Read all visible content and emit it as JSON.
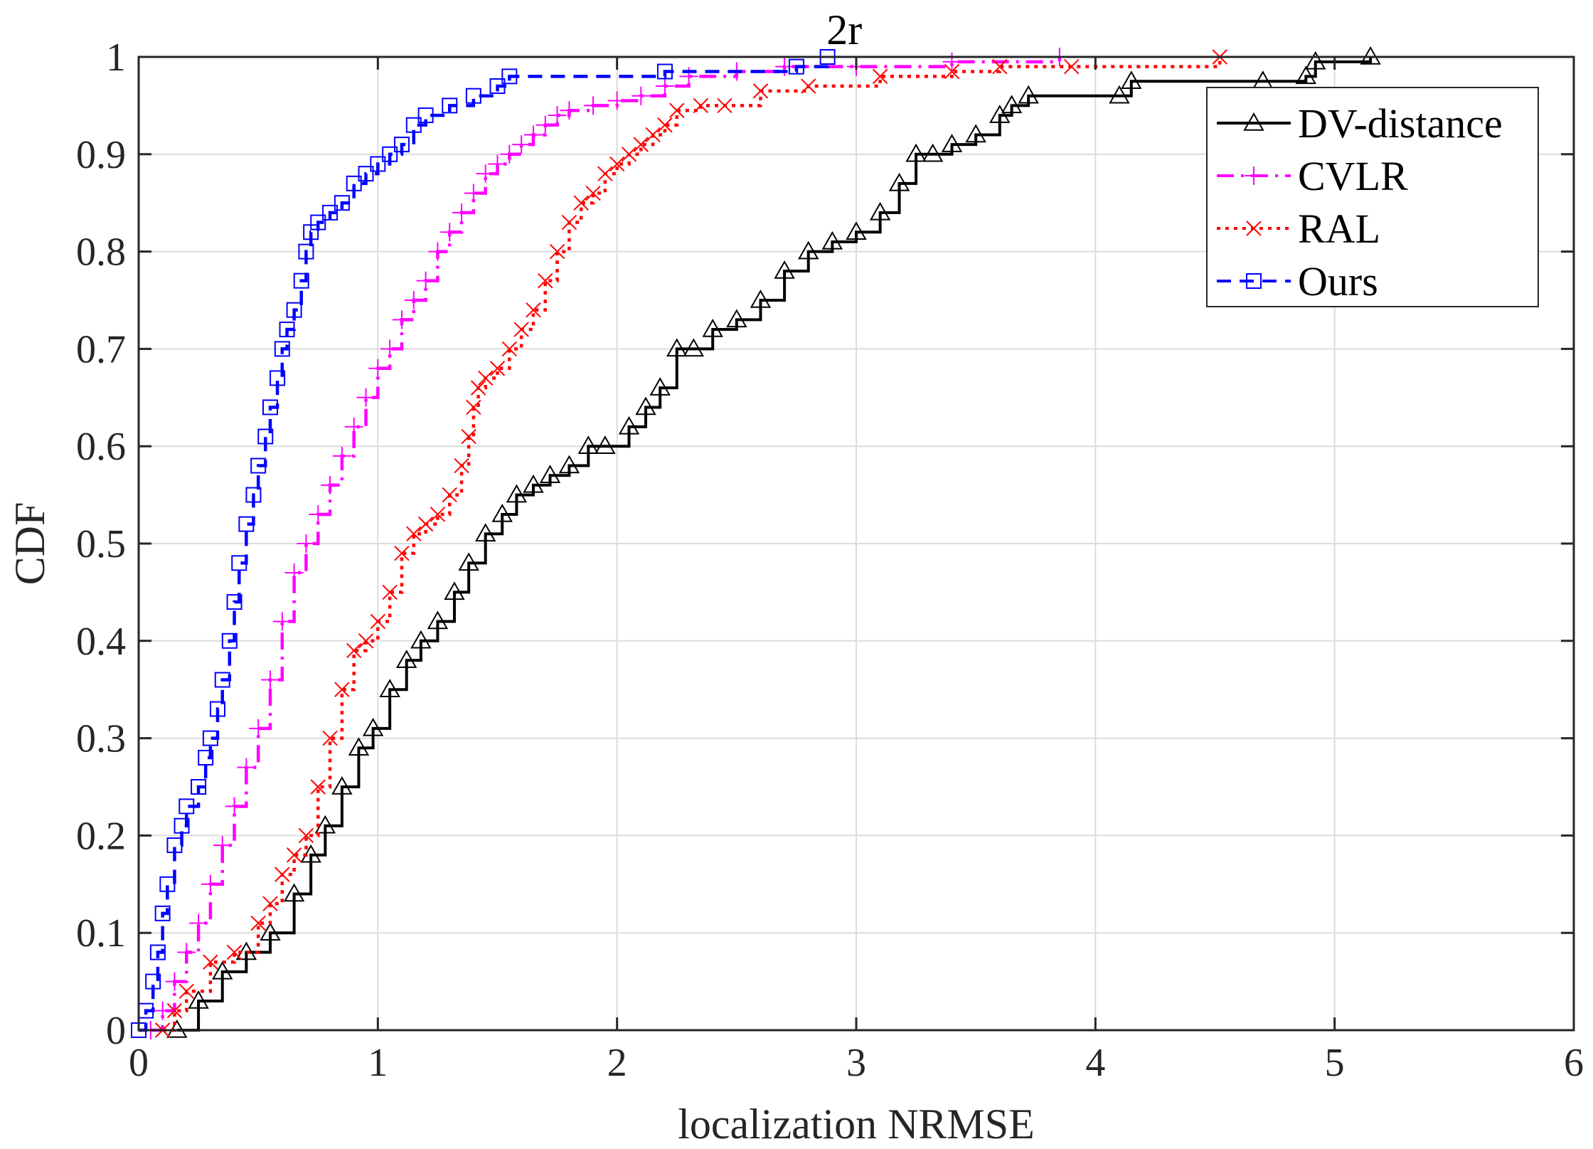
{
  "chart_data": {
    "type": "line",
    "title": "2r",
    "xlabel": "localization  NRMSE",
    "ylabel": "CDF",
    "xlim": [
      0,
      6
    ],
    "ylim": [
      0,
      1
    ],
    "grid": true,
    "legend_position": "top-right",
    "xticks": [
      0,
      1,
      2,
      3,
      4,
      5,
      6
    ],
    "xtick_labels": [
      "0",
      "1",
      "2",
      "3",
      "4",
      "5",
      "6"
    ],
    "yticks": [
      0,
      0.1,
      0.2,
      0.3,
      0.4,
      0.5,
      0.6,
      0.7,
      0.8,
      0.9,
      1
    ],
    "ytick_labels": [
      "0",
      "0.1",
      "0.2",
      "0.3",
      "0.4",
      "0.5",
      "0.6",
      "0.7",
      "0.8",
      "0.9",
      "1"
    ],
    "series": [
      {
        "name": "DV-distance",
        "color": "#000000",
        "line_style": "solid",
        "marker": "triangle",
        "x": [
          0.16,
          0.25,
          0.35,
          0.45,
          0.55,
          0.65,
          0.72,
          0.78,
          0.85,
          0.92,
          0.98,
          1.05,
          1.12,
          1.18,
          1.25,
          1.32,
          1.38,
          1.45,
          1.52,
          1.58,
          1.65,
          1.72,
          1.8,
          1.88,
          1.95,
          2.05,
          2.12,
          2.18,
          2.25,
          2.32,
          2.4,
          2.5,
          2.6,
          2.7,
          2.8,
          2.9,
          3.0,
          3.1,
          3.18,
          3.25,
          3.32,
          3.4,
          3.5,
          3.6,
          3.65,
          3.72,
          4.1,
          4.15,
          4.7,
          4.88,
          4.92,
          5.15
        ],
        "y": [
          0.0,
          0.03,
          0.06,
          0.08,
          0.1,
          0.14,
          0.18,
          0.21,
          0.25,
          0.29,
          0.31,
          0.35,
          0.38,
          0.4,
          0.42,
          0.45,
          0.48,
          0.51,
          0.53,
          0.55,
          0.56,
          0.57,
          0.58,
          0.6,
          0.6,
          0.62,
          0.64,
          0.66,
          0.7,
          0.7,
          0.72,
          0.73,
          0.75,
          0.78,
          0.8,
          0.81,
          0.82,
          0.84,
          0.87,
          0.9,
          0.9,
          0.91,
          0.92,
          0.94,
          0.95,
          0.96,
          0.96,
          0.975,
          0.975,
          0.98,
          0.995,
          1.0
        ]
      },
      {
        "name": "CVLR",
        "color": "#ff00ff",
        "line_style": "dashdot",
        "marker": "plus",
        "x": [
          0.05,
          0.1,
          0.15,
          0.2,
          0.25,
          0.3,
          0.35,
          0.4,
          0.45,
          0.5,
          0.55,
          0.6,
          0.65,
          0.7,
          0.75,
          0.8,
          0.85,
          0.9,
          0.95,
          1.0,
          1.05,
          1.1,
          1.15,
          1.2,
          1.25,
          1.3,
          1.35,
          1.4,
          1.45,
          1.5,
          1.55,
          1.6,
          1.65,
          1.7,
          1.75,
          1.8,
          1.9,
          2.0,
          2.1,
          2.2,
          2.3,
          2.5,
          2.7,
          3.0,
          3.4,
          3.85
        ],
        "y": [
          0.0,
          0.02,
          0.05,
          0.08,
          0.11,
          0.15,
          0.19,
          0.23,
          0.27,
          0.31,
          0.36,
          0.42,
          0.47,
          0.5,
          0.53,
          0.56,
          0.59,
          0.62,
          0.65,
          0.68,
          0.7,
          0.73,
          0.75,
          0.77,
          0.8,
          0.82,
          0.84,
          0.86,
          0.88,
          0.89,
          0.9,
          0.91,
          0.92,
          0.93,
          0.94,
          0.945,
          0.95,
          0.955,
          0.96,
          0.97,
          0.98,
          0.985,
          0.99,
          0.99,
          0.995,
          1.0
        ]
      },
      {
        "name": "RAL",
        "color": "#ff0000",
        "line_style": "dotted",
        "marker": "x",
        "x": [
          0.1,
          0.15,
          0.2,
          0.3,
          0.4,
          0.5,
          0.55,
          0.6,
          0.65,
          0.7,
          0.75,
          0.8,
          0.85,
          0.9,
          0.95,
          1.0,
          1.05,
          1.1,
          1.15,
          1.2,
          1.25,
          1.3,
          1.35,
          1.38,
          1.4,
          1.42,
          1.45,
          1.5,
          1.55,
          1.6,
          1.65,
          1.7,
          1.75,
          1.8,
          1.85,
          1.9,
          1.95,
          2.0,
          2.05,
          2.1,
          2.15,
          2.2,
          2.25,
          2.35,
          2.45,
          2.6,
          2.8,
          3.1,
          3.4,
          3.6,
          3.9,
          4.52
        ],
        "y": [
          0.0,
          0.02,
          0.04,
          0.07,
          0.08,
          0.11,
          0.13,
          0.16,
          0.18,
          0.2,
          0.25,
          0.3,
          0.35,
          0.39,
          0.4,
          0.42,
          0.45,
          0.49,
          0.51,
          0.52,
          0.53,
          0.55,
          0.58,
          0.61,
          0.64,
          0.66,
          0.67,
          0.68,
          0.7,
          0.72,
          0.74,
          0.77,
          0.8,
          0.83,
          0.85,
          0.86,
          0.88,
          0.89,
          0.9,
          0.91,
          0.92,
          0.93,
          0.945,
          0.95,
          0.95,
          0.965,
          0.97,
          0.98,
          0.985,
          0.99,
          0.99,
          1.0
        ]
      },
      {
        "name": "Ours",
        "color": "#0000ff",
        "line_style": "dashed",
        "marker": "square",
        "x": [
          0.0,
          0.03,
          0.06,
          0.08,
          0.1,
          0.12,
          0.15,
          0.18,
          0.2,
          0.25,
          0.28,
          0.3,
          0.33,
          0.35,
          0.38,
          0.4,
          0.42,
          0.45,
          0.48,
          0.5,
          0.53,
          0.55,
          0.58,
          0.6,
          0.62,
          0.65,
          0.68,
          0.7,
          0.72,
          0.75,
          0.8,
          0.85,
          0.9,
          0.95,
          1.0,
          1.05,
          1.1,
          1.15,
          1.2,
          1.3,
          1.4,
          1.5,
          1.55,
          2.2,
          2.75,
          2.88
        ],
        "y": [
          0.0,
          0.02,
          0.05,
          0.08,
          0.12,
          0.15,
          0.19,
          0.21,
          0.23,
          0.25,
          0.28,
          0.3,
          0.33,
          0.36,
          0.4,
          0.44,
          0.48,
          0.52,
          0.55,
          0.58,
          0.61,
          0.64,
          0.67,
          0.7,
          0.72,
          0.74,
          0.77,
          0.8,
          0.82,
          0.83,
          0.84,
          0.85,
          0.87,
          0.88,
          0.89,
          0.9,
          0.91,
          0.93,
          0.94,
          0.95,
          0.96,
          0.97,
          0.98,
          0.985,
          0.99,
          1.0
        ]
      }
    ]
  }
}
